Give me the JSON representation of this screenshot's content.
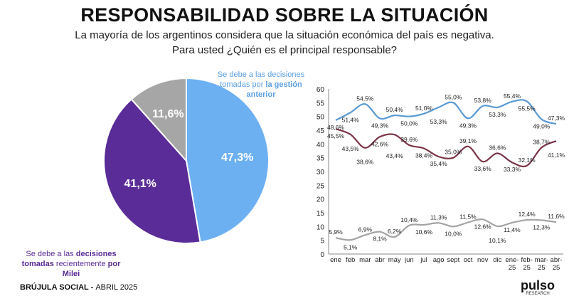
{
  "title": "RESPONSABILIDAD SOBRE LA SITUACIÓN",
  "subtitle1": "La mayoría de los argentinos considera que la situación económica del país es negativa.",
  "subtitle2": "Para usted ¿Quién es el principal responsable?",
  "footer": {
    "brand": "BRÚJULA SOCIAL - ",
    "date": "ABRIL 2025"
  },
  "logo": {
    "name": "pulso",
    "tagline": "RESEARCH"
  },
  "legend": {
    "blue_pre": "Se debe a las decisiones tomadas por ",
    "blue_bold": "la gestión anterior",
    "purple_pre": "Se debe a las ",
    "purple_bold1": "decisiones tomadas",
    "purple_mid": " recientemente ",
    "purple_bold2": "por Milei"
  },
  "chart_data": [
    {
      "type": "pie",
      "slices": [
        {
          "label": "47,3%",
          "value": 47.3,
          "color": "#6cb0f2"
        },
        {
          "label": "41,1%",
          "value": 41.1,
          "color": "#5a2c97"
        },
        {
          "label": "11,6%",
          "value": 11.6,
          "color": "#a6a6a6"
        }
      ]
    },
    {
      "type": "line",
      "ylim": [
        0,
        60
      ],
      "yticks": [
        0,
        5,
        10,
        15,
        20,
        25,
        30,
        35,
        40,
        45,
        50,
        55,
        60
      ],
      "grid": false,
      "categories": [
        "ene",
        "feb",
        "mar",
        "abr",
        "may",
        "jun",
        "jul",
        "ago",
        "sept",
        "oct",
        "nov",
        "dic",
        "ene-25",
        "feb-25",
        "mar-25",
        "abr-25"
      ],
      "series": [
        {
          "color": "#5b9ad3",
          "values": [
            48.6,
            51.4,
            54.5,
            49.3,
            50.4,
            50.0,
            51.0,
            53.3,
            55.0,
            49.3,
            53.8,
            53.3,
            55.4,
            55.5,
            49.0,
            47.3
          ],
          "labels": [
            "48,6%",
            "51,4%",
            "54,5%",
            "49,3%",
            "50,4%",
            "50,0%",
            "51,0%",
            "53,3%",
            "55,0%",
            "49,3%",
            "53,8%",
            "53,3%",
            "55,4%",
            "55,5%",
            "49,0%",
            "47,3%"
          ]
        },
        {
          "color": "#7a3547",
          "values": [
            45.5,
            43.5,
            38.6,
            42.6,
            43.4,
            39.6,
            38.4,
            35.4,
            35.0,
            39.1,
            33.6,
            36.6,
            33.3,
            32.1,
            38.7,
            41.1
          ],
          "labels": [
            "45,5%",
            "43,5%",
            "38,6%",
            "42,6%",
            "43,4%",
            "39,6%",
            "38,4%",
            "35,4%",
            "35,0%",
            "39,1%",
            "33,6%",
            "36,6%",
            "33,3%",
            "32,1%",
            "38,7%",
            "41,1%"
          ]
        },
        {
          "color": "#a3a3a3",
          "values": [
            5.9,
            5.1,
            6.9,
            8.1,
            6.2,
            10.4,
            10.6,
            11.3,
            10.0,
            11.5,
            12.6,
            10.1,
            11.4,
            12.4,
            12.3,
            11.6
          ],
          "labels": [
            "5,9%",
            "5,1%",
            "6,9%",
            "8,1%",
            "6,2%",
            "10,4%",
            "10,6%",
            "11,3%",
            "10,0%",
            "11,5%",
            "12,6%",
            "10,1%",
            "11,4%",
            "12,4%",
            "12,3%",
            "11,6%"
          ]
        }
      ]
    }
  ]
}
